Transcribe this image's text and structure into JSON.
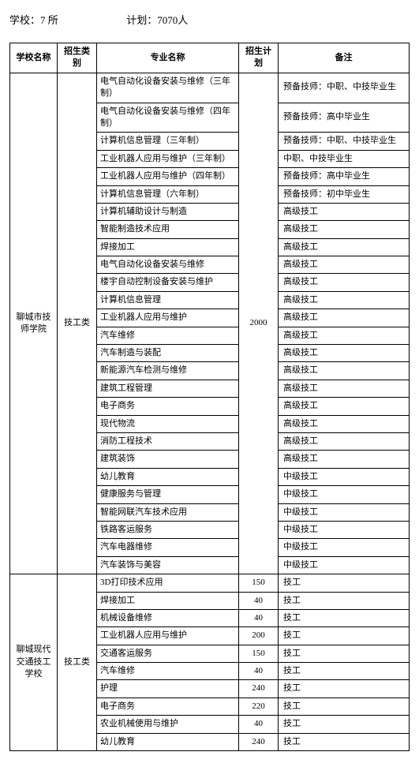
{
  "header": {
    "schools_label": "学校：",
    "schools_value": "7 所",
    "plan_label": "计划：",
    "plan_value": "7070人"
  },
  "columns": {
    "school": "学校名称",
    "category": "招生类别",
    "major": "专业名称",
    "plan": "招生计划",
    "note": "备注"
  },
  "groups": [
    {
      "school": "聊城市技师学院",
      "category": "技工类",
      "plan": "2000",
      "rows": [
        {
          "major": "电气自动化设备安装与维修（三年制）",
          "note": "预备技师：中职、中技毕业生"
        },
        {
          "major": "电气自动化设备安装与维修（四年制）",
          "note": "预备技师：高中毕业生"
        },
        {
          "major": "计算机信息管理（三年制）",
          "note": "预备技师：中职、中技毕业生"
        },
        {
          "major": "工业机器人应用与维护（三年制）",
          "note": "中职、中技毕业生"
        },
        {
          "major": "工业机器人应用与维护（四年制）",
          "note": "预备技师：高中毕业生"
        },
        {
          "major": "计算机信息管理（六年制）",
          "note": "预备技师：初中毕业生"
        },
        {
          "major": "计算机辅助设计与制造",
          "note": "高级技工"
        },
        {
          "major": "智能制造技术应用",
          "note": "高级技工"
        },
        {
          "major": "焊接加工",
          "note": "高级技工"
        },
        {
          "major": "电气自动化设备安装与维修",
          "note": "高级技工"
        },
        {
          "major": "楼宇自动控制设备安装与维护",
          "note": "高级技工"
        },
        {
          "major": "计算机信息管理",
          "note": "高级技工"
        },
        {
          "major": "工业机器人应用与维护",
          "note": "高级技工"
        },
        {
          "major": "汽车维修",
          "note": "高级技工"
        },
        {
          "major": "汽车制造与装配",
          "note": "高级技工"
        },
        {
          "major": "新能源汽车检测与维修",
          "note": "高级技工"
        },
        {
          "major": "建筑工程管理",
          "note": "高级技工"
        },
        {
          "major": "电子商务",
          "note": "高级技工"
        },
        {
          "major": "现代物流",
          "note": "高级技工"
        },
        {
          "major": "消防工程技术",
          "note": "高级技工"
        },
        {
          "major": "建筑装饰",
          "note": "高级技工"
        },
        {
          "major": "幼儿教育",
          "note": "中级技工"
        },
        {
          "major": "健康服务与管理",
          "note": "中级技工"
        },
        {
          "major": "智能网联汽车技术应用",
          "note": "中级技工"
        },
        {
          "major": "铁路客运服务",
          "note": "中级技工"
        },
        {
          "major": "汽车电器维修",
          "note": "中级技工"
        },
        {
          "major": "汽车装饰与美容",
          "note": "中级技工"
        }
      ]
    },
    {
      "school": "聊城现代交通技工学校",
      "category": "技工类",
      "rows": [
        {
          "major": "3D打印技术应用",
          "plan": "150",
          "note": "技工"
        },
        {
          "major": "焊接加工",
          "plan": "40",
          "note": "技工"
        },
        {
          "major": "机械设备维修",
          "plan": "40",
          "note": "技工"
        },
        {
          "major": "工业机器人应用与维护",
          "plan": "200",
          "note": "技工"
        },
        {
          "major": "交通客运服务",
          "plan": "150",
          "note": "技工"
        },
        {
          "major": "汽车维修",
          "plan": "40",
          "note": "技工"
        },
        {
          "major": "护理",
          "plan": "240",
          "note": "技工"
        },
        {
          "major": "电子商务",
          "plan": "220",
          "note": "技工"
        },
        {
          "major": "农业机械使用与维护",
          "plan": "40",
          "note": "技工"
        },
        {
          "major": "幼儿教育",
          "plan": "240",
          "note": "技工"
        }
      ]
    }
  ]
}
